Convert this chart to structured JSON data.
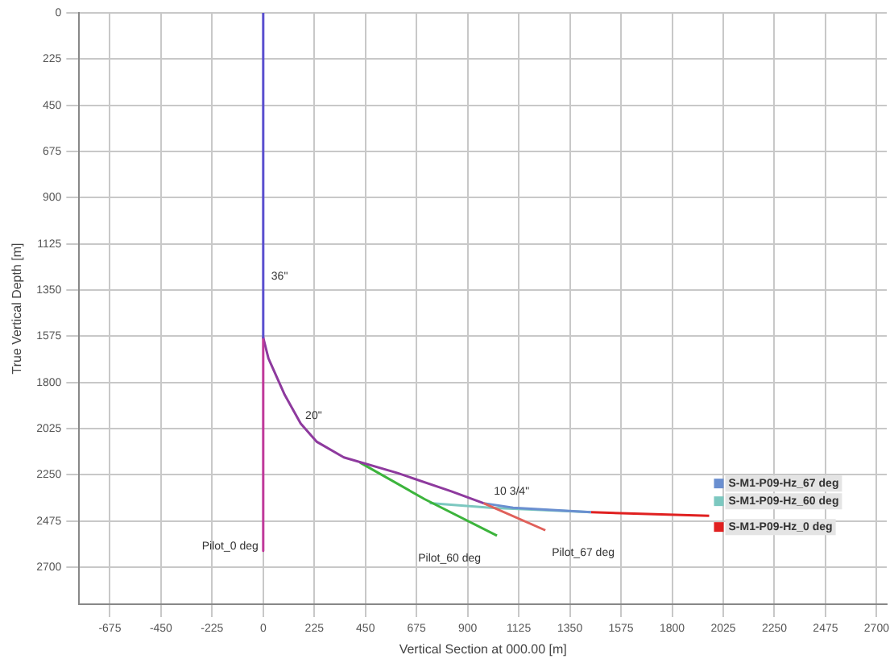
{
  "chart_data": {
    "type": "line",
    "xlabel": "Vertical Section at 000.00 [m]",
    "ylabel": "True Vertical Depth [m]",
    "xlim": [
      -810,
      2745
    ],
    "xticks": [
      -675,
      -450,
      -225,
      0,
      225,
      450,
      675,
      900,
      1125,
      1350,
      1575,
      1800,
      2025,
      2250,
      2475,
      2700
    ],
    "ylim": [
      2880,
      0
    ],
    "yticks": [
      0,
      225,
      450,
      675,
      900,
      1125,
      1350,
      1575,
      1800,
      2025,
      2250,
      2475,
      2700
    ],
    "grid": true,
    "legend": "right",
    "marker": "none",
    "line_style": "solid",
    "series": [
      {
        "color": "#5a4fcf",
        "x": [
          0,
          0
        ],
        "values": [
          0,
          1580
        ]
      },
      {
        "name": "Pilot_0 deg",
        "color": "#c0399a",
        "x": [
          0,
          0
        ],
        "values": [
          1580,
          2620
        ]
      },
      {
        "color": "#8e3a9e",
        "x": [
          0,
          0,
          23,
          95,
          165,
          236,
          355,
          591,
          828,
          970
        ],
        "values": [
          1580,
          1582,
          1683,
          1861,
          2000,
          2089,
          2165,
          2241,
          2330,
          2388
        ]
      },
      {
        "name": "Pilot_60 deg",
        "color": "#3cb43c",
        "x": [
          426,
          710,
          1029
        ],
        "values": [
          2190,
          2368,
          2546
        ]
      },
      {
        "name": "Pilot_67 deg",
        "color": "#e0605a",
        "x": [
          970,
          1242
        ],
        "values": [
          2388,
          2520
        ]
      },
      {
        "name": "S-M1-P09-Hz_67 deg",
        "color": "#6a8fd0",
        "x": [
          970,
          1100,
          1443
        ],
        "values": [
          2388,
          2410,
          2432
        ]
      },
      {
        "name": "S-M1-P09-Hz_60 deg",
        "color": "#7cc8c0",
        "x": [
          733,
          1000,
          1443
        ],
        "values": [
          2388,
          2410,
          2432
        ]
      },
      {
        "name": "S-M1-P09-Hz_0 deg",
        "color": "#e02020",
        "x": [
          1443,
          1963
        ],
        "values": [
          2432,
          2449
        ]
      }
    ],
    "annotations": [
      {
        "text": "36\"",
        "x": 0,
        "y": 1330
      },
      {
        "text": "20\"",
        "x": 150,
        "y": 2010
      },
      {
        "text": "10 3/4\"",
        "x": 980,
        "y": 2380
      }
    ]
  }
}
